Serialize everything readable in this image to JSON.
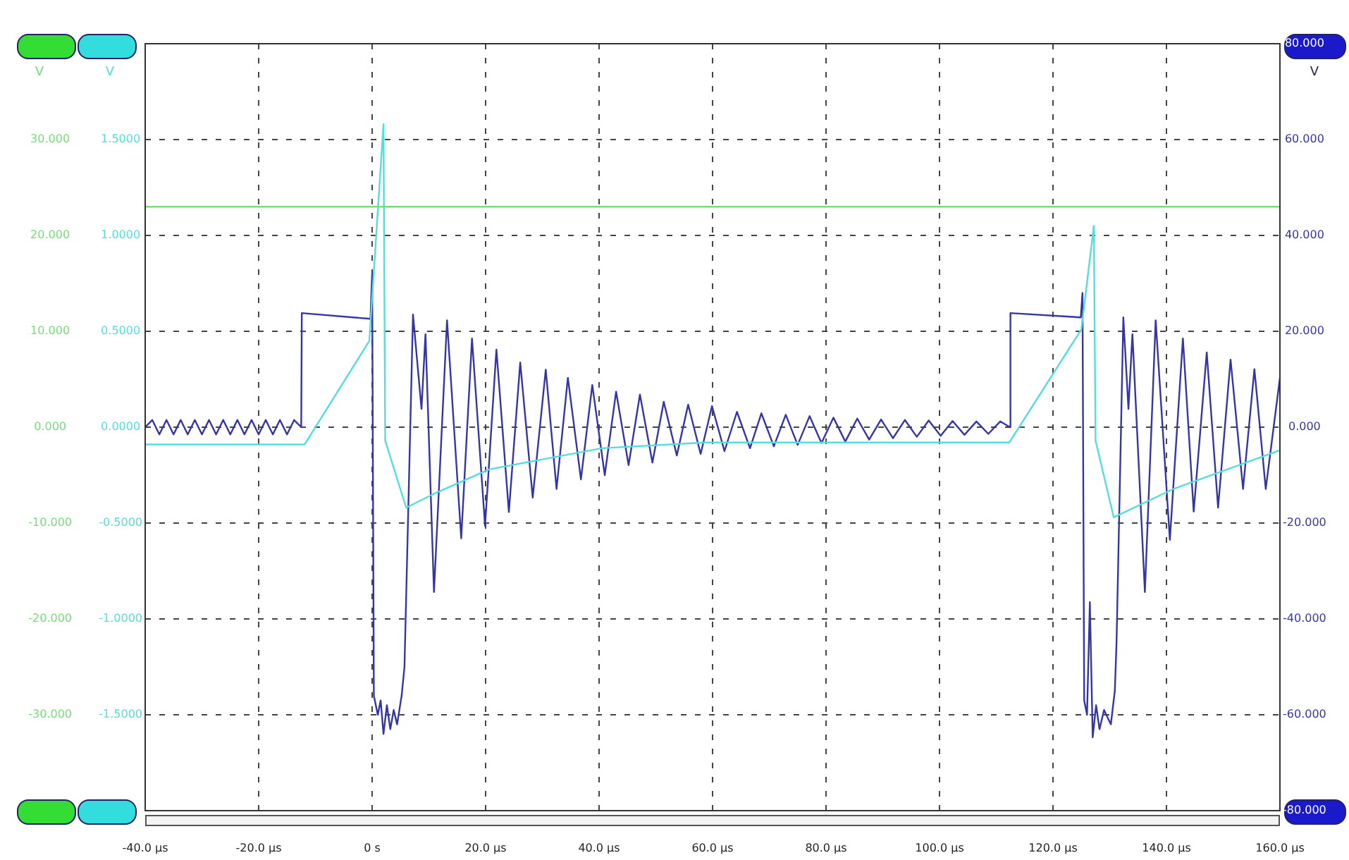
{
  "chart_data": {
    "type": "line",
    "xlim": [
      -40,
      160
    ],
    "xticks": [
      {
        "value": -40,
        "label": "-40.0 µs"
      },
      {
        "value": -20,
        "label": "-20.0 µs"
      },
      {
        "value": 0,
        "label": "0 s"
      },
      {
        "value": 20,
        "label": "20.0 µs"
      },
      {
        "value": 40,
        "label": "40.0 µs"
      },
      {
        "value": 60,
        "label": "60.0 µs"
      },
      {
        "value": 80,
        "label": "80.0 µs"
      },
      {
        "value": 100,
        "label": "100.0 µs"
      },
      {
        "value": 120,
        "label": "120.0 µs"
      },
      {
        "value": 140,
        "label": "140.0 µs"
      },
      {
        "value": 160,
        "label": "160.0 µs"
      }
    ],
    "ylabel": "V",
    "y2label": "V",
    "y3label": "V",
    "ylim": [
      -40,
      40
    ],
    "yticks": [
      {
        "value": 30,
        "label": "30.000"
      },
      {
        "value": 20,
        "label": "20.000"
      },
      {
        "value": 10,
        "label": "10.000"
      },
      {
        "value": 0,
        "label": "0.000"
      },
      {
        "value": -10,
        "label": "-10.000"
      },
      {
        "value": -20,
        "label": "-20.000"
      },
      {
        "value": -30,
        "label": "-30.000"
      }
    ],
    "y2lim": [
      -2,
      2
    ],
    "y2ticks": [
      {
        "value": 1.5,
        "label": "1.5000"
      },
      {
        "value": 1,
        "label": "1.0000"
      },
      {
        "value": 0.5,
        "label": "0.5000"
      },
      {
        "value": 0,
        "label": "0.0000"
      },
      {
        "value": -0.5,
        "label": "-0.5000"
      },
      {
        "value": -1,
        "label": "-1.0000"
      },
      {
        "value": -1.5,
        "label": "-1.5000"
      }
    ],
    "y3lim": [
      -80,
      80
    ],
    "y3ticks": [
      {
        "value": 80,
        "label": "80.000"
      },
      {
        "value": 60,
        "label": "60.000"
      },
      {
        "value": 40,
        "label": "40.000"
      },
      {
        "value": 20,
        "label": "20.000"
      },
      {
        "value": 0,
        "label": "0.000"
      },
      {
        "value": -20,
        "label": "-20.000"
      },
      {
        "value": -40,
        "label": "-40.000"
      },
      {
        "value": -60,
        "label": "-60.000"
      },
      {
        "value": -80,
        "label": "-80.000"
      }
    ],
    "grid": true,
    "legend": false,
    "marker": "none",
    "line_style": "solid",
    "series": [
      {
        "type": "line",
        "axis": "y",
        "color": "#77dd77",
        "x": [
          -40,
          160
        ],
        "values": [
          23,
          23
        ]
      },
      {
        "type": "line",
        "axis": "y2",
        "color": "#55dddd",
        "x": [
          -40,
          -11.9,
          -0.5,
          2.0,
          2.3,
          6.0,
          10.7,
          20.6,
          40.5,
          58.6,
          112.3,
          125,
          127.2,
          127.5,
          130.7,
          141.4,
          160
        ],
        "values": [
          -0.09,
          -0.09,
          0.45,
          1.58,
          -0.07,
          -0.42,
          -0.35,
          -0.22,
          -0.11,
          -0.08,
          -0.08,
          0.51,
          1.05,
          -0.07,
          -0.47,
          -0.32,
          -0.12
        ]
      },
      {
        "type": "line",
        "axis": "y3",
        "color": "#3535a5",
        "x": [
          -40,
          -38.75,
          -37.5,
          -36.25,
          -35,
          -33.75,
          -32.5,
          -31.25,
          -30,
          -28.75,
          -27.5,
          -26.25,
          -25,
          -23.75,
          -22.5,
          -21.25,
          -20,
          -18.75,
          -17.5,
          -16.25,
          -15,
          -13.75,
          -12.5,
          -12.4,
          -0.3,
          0.0,
          0.3,
          1.0,
          1.5,
          2.0,
          2.6,
          3.2,
          3.8,
          4.4,
          5.2,
          5.7,
          7.2,
          8.7,
          9.4,
          10.9,
          13.2,
          15.7,
          17.6,
          19.9,
          21.9,
          24.1,
          26.1,
          28.3,
          30.6,
          32.5,
          34.5,
          36.8,
          38.8,
          41,
          43,
          45.2,
          47.2,
          49.4,
          51.4,
          53.7,
          55.7,
          57.9,
          59.9,
          62.1,
          64.3,
          66.6,
          68.6,
          70.8,
          72.9,
          75,
          77.1,
          79.2,
          81.3,
          83.4,
          85.5,
          87.6,
          89.7,
          91.8,
          93.9,
          96,
          98.1,
          100.2,
          102.3,
          104.4,
          106.5,
          108.6,
          110.7,
          112.4,
          112.5,
          124.9,
          125.2,
          125.5,
          126,
          126.5,
          127,
          127.6,
          128.2,
          129,
          130.2,
          130.9,
          131.2,
          132.4,
          133.3,
          134,
          136.2,
          138.1,
          140.6,
          142.9,
          144.8,
          147.1,
          149.1,
          151.3,
          153.5,
          155.5,
          157.5,
          160
        ],
        "values": [
          0,
          1.5,
          -1.5,
          1.5,
          -1.5,
          1.5,
          -1.5,
          1.5,
          -1.5,
          1.5,
          -1.5,
          1.5,
          -1.5,
          1.5,
          -1.5,
          1.5,
          -1.5,
          1.5,
          -1.5,
          1.5,
          -1.5,
          1.5,
          0,
          23.8,
          22.6,
          32,
          -56,
          -60,
          -57,
          -64,
          -58,
          -63,
          -59,
          -62,
          -56,
          -50,
          23.5,
          3.8,
          19.4,
          -34.4,
          22.3,
          -23.2,
          18.5,
          -20.6,
          16.2,
          -17.7,
          13.5,
          -14.7,
          12,
          -12.9,
          10.3,
          -10.9,
          8.8,
          -10,
          7.4,
          -7.9,
          6.8,
          -7.4,
          5.3,
          -5.9,
          4.7,
          -5.6,
          4.4,
          -5,
          3.2,
          -4.4,
          2.9,
          -4,
          2.6,
          -3.7,
          2.3,
          -3.3,
          2,
          -3,
          1.8,
          -2.6,
          1.6,
          -2.3,
          1.5,
          -2,
          1.4,
          -1.8,
          1.3,
          -1.6,
          1.2,
          -1.4,
          1.2,
          0,
          23.8,
          22.9,
          28,
          -57,
          -60,
          -36.5,
          -64.7,
          -58,
          -63,
          -59,
          -62,
          -55,
          -45,
          22.9,
          3.8,
          19.4,
          -34.4,
          22.3,
          -23.5,
          18.5,
          -17.6,
          15.6,
          -16.8,
          14.1,
          -12.9,
          12.1,
          -12.9,
          10.3
        ]
      }
    ]
  }
}
